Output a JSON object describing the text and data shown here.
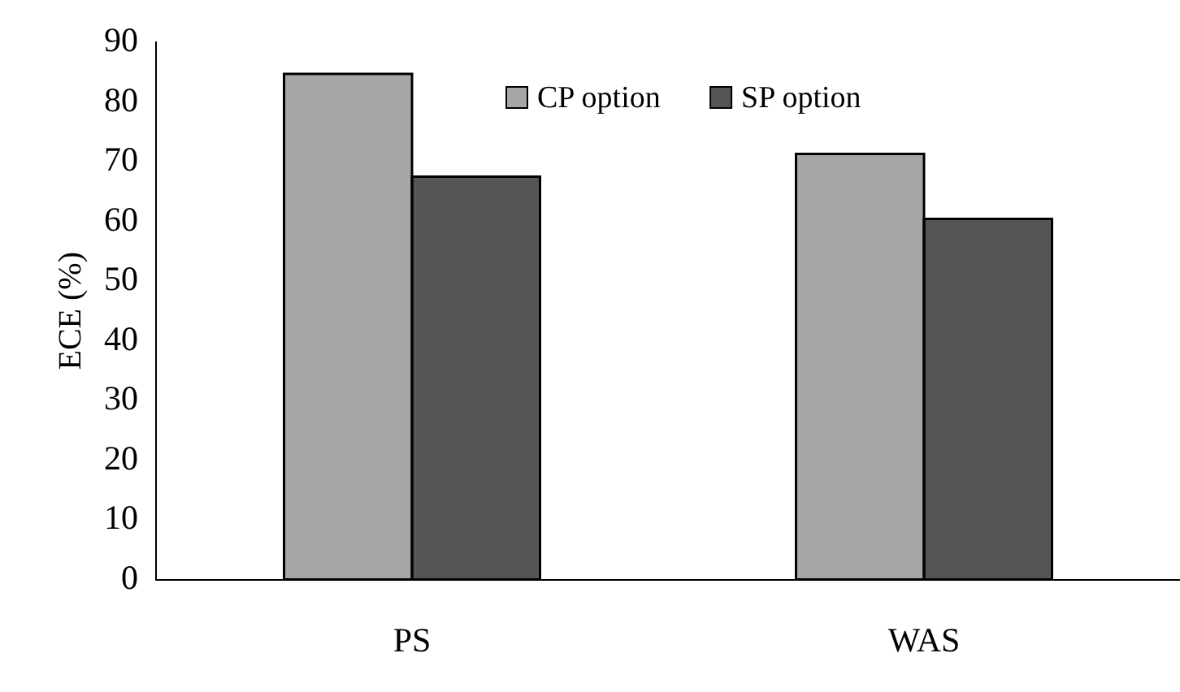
{
  "chart_data": {
    "type": "bar",
    "ylabel": "ECE (%)",
    "categories": [
      "PS",
      "WAS"
    ],
    "series": [
      {
        "name": "CP option",
        "color": "#a6a6a6",
        "values": [
          84.7,
          71.3
        ]
      },
      {
        "name": "SP option",
        "color": "#555555",
        "values": [
          67.5,
          60.4
        ]
      }
    ],
    "ylim": [
      0,
      90
    ],
    "yticks": [
      0,
      10,
      20,
      30,
      40,
      50,
      60,
      70,
      80,
      90
    ],
    "grid": false,
    "legend": "top"
  }
}
